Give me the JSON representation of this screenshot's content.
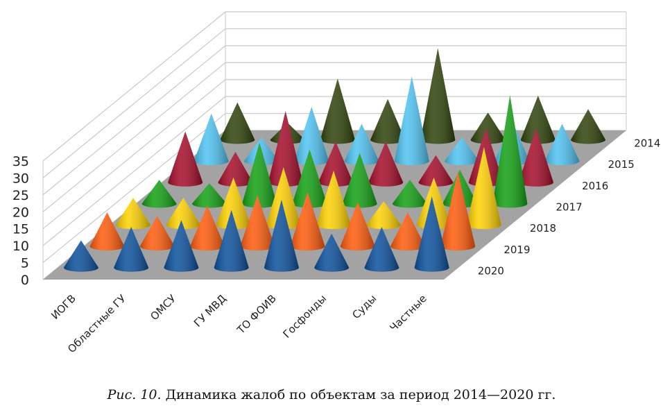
{
  "caption": {
    "prefix": "Рис. 10.",
    "text": " Динамика жалоб по объектам за период 2014—2020 гг."
  },
  "chart_data": {
    "type": "3d-cone",
    "title": "",
    "categories": [
      "ИОГВ",
      "Областные ГУ",
      "ОМСУ",
      "ГУ МВД",
      "ТО ФОИВ",
      "Госфонды",
      "Суды",
      "Частные"
    ],
    "yticks": [
      0,
      5,
      10,
      15,
      20,
      25,
      30,
      35
    ],
    "ylim": [
      0,
      35
    ],
    "grid": true,
    "series": [
      {
        "name": "2020",
        "color": "#0a4f9c",
        "values": [
          8,
          12,
          14,
          17,
          20,
          10,
          12,
          21
        ]
      },
      {
        "name": "2019",
        "color": "#ff5a0a",
        "values": [
          10,
          9,
          12,
          15,
          16,
          13,
          10,
          22
        ]
      },
      {
        "name": "2018",
        "color": "#ffd200",
        "values": [
          8,
          8,
          14,
          17,
          16,
          7,
          14,
          23
        ]
      },
      {
        "name": "2017",
        "color": "#12a012",
        "values": [
          7,
          6,
          18,
          16,
          15,
          7,
          10,
          32
        ]
      },
      {
        "name": "2016",
        "color": "#a50a28",
        "values": [
          15,
          9,
          21,
          12,
          12,
          8,
          16,
          16
        ]
      },
      {
        "name": "2015",
        "color": "#4fc3f2",
        "values": [
          14,
          7,
          16,
          11,
          25,
          7,
          12,
          11
        ]
      },
      {
        "name": "2014",
        "color": "#2d4108",
        "values": [
          11,
          5,
          18,
          12,
          27,
          8,
          13,
          9
        ]
      }
    ],
    "floor_color": "#a3a3a3"
  }
}
